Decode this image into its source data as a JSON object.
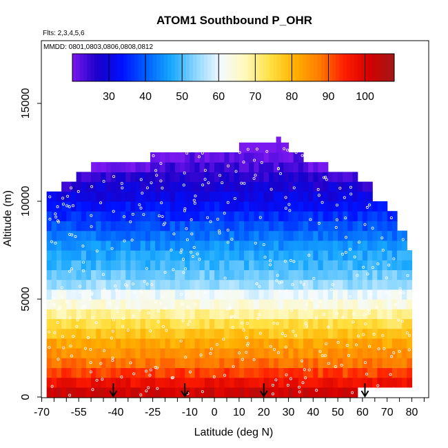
{
  "chart_data": {
    "type": "heatmap",
    "title": "ATOM1 Southbound P_OHR",
    "subtitle_flights": "Flts: 2,3,4,5,6",
    "subtitle_dates": "MMDD: 0801,0803,0806,0808,0812",
    "xlabel": "Latitude (deg N)",
    "ylabel": "Altitude (m)",
    "xlim": [
      -70,
      85
    ],
    "ylim": [
      0,
      17500
    ],
    "x_ticks": [
      -70,
      -55,
      -40,
      -25,
      -10,
      0,
      10,
      20,
      30,
      40,
      50,
      60,
      70,
      80
    ],
    "x_tick_labels": [
      "-70",
      "-55",
      "-40",
      "-25",
      "-10",
      "0",
      "10",
      "20",
      "30",
      "40",
      "50",
      "60",
      "70",
      "80"
    ],
    "y_ticks": [
      0,
      5000,
      10000,
      15000
    ],
    "y_tick_labels": [
      "0",
      "5000",
      "10000",
      "15000"
    ],
    "colorbar": {
      "range": [
        20,
        108
      ],
      "ticks": [
        30,
        40,
        50,
        60,
        70,
        80,
        90,
        100
      ],
      "tick_labels": [
        "30",
        "40",
        "50",
        "60",
        "70",
        "80",
        "90",
        "100"
      ],
      "colors": [
        "#7a18f0",
        "#1a00c8",
        "#0010ff",
        "#0060ff",
        "#18a8ff",
        "#8ed8ff",
        "#f4faff",
        "#fff8b8",
        "#ffe040",
        "#ffb000",
        "#ff7a00",
        "#ff1c00",
        "#d40000",
        "#a01818"
      ]
    },
    "profile": {
      "altitude_m": [
        250,
        750,
        1250,
        1750,
        2250,
        2750,
        3250,
        3750,
        4250,
        4750,
        5250,
        5750,
        6250,
        6750,
        7250,
        7750,
        8250,
        8750,
        9250,
        9750,
        10250,
        10750,
        11250,
        11750,
        12250,
        12750,
        13250
      ],
      "value": [
        102,
        97,
        92,
        88,
        85,
        82,
        78,
        74,
        69,
        64,
        60,
        55,
        52,
        49,
        47,
        45,
        42,
        39,
        36,
        33,
        30,
        28,
        26,
        24,
        22,
        21,
        20
      ]
    },
    "coverage_top_m": [
      {
        "lat_range": [
          -68,
          -62
        ],
        "top_m": 10500
      },
      {
        "lat_range": [
          -62,
          -56
        ],
        "top_m": 10800
      },
      {
        "lat_range": [
          -56,
          -50
        ],
        "top_m": 11300
      },
      {
        "lat_range": [
          -50,
          -26
        ],
        "top_m": 11900
      },
      {
        "lat_range": [
          -26,
          -14
        ],
        "top_m": 12400
      },
      {
        "lat_range": [
          -14,
          2
        ],
        "top_m": 12500
      },
      {
        "lat_range": [
          2,
          10
        ],
        "top_m": 12500
      },
      {
        "lat_range": [
          10,
          20
        ],
        "top_m": 12900
      },
      {
        "lat_range": [
          20,
          26
        ],
        "top_m": 12900
      },
      {
        "lat_range": [
          26,
          30
        ],
        "top_m": 12900
      },
      {
        "lat_range": [
          30,
          36
        ],
        "top_m": 12500
      },
      {
        "lat_range": [
          36,
          46
        ],
        "top_m": 11900
      },
      {
        "lat_range": [
          46,
          58
        ],
        "top_m": 11400
      },
      {
        "lat_range": [
          58,
          64
        ],
        "top_m": 10900
      },
      {
        "lat_range": [
          64,
          70
        ],
        "top_m": 10000
      },
      {
        "lat_range": [
          70,
          74
        ],
        "top_m": 9400
      },
      {
        "lat_range": [
          74,
          77
        ],
        "top_m": 8400
      },
      {
        "lat_range": [
          77,
          79
        ],
        "top_m": 7500
      },
      {
        "lat_range": [
          79,
          80
        ],
        "top_m": 5500
      }
    ],
    "top_spike": {
      "lat_range": [
        25,
        27
      ],
      "top_m": 13300
    },
    "low_gap": {
      "lat_range": [
        57,
        80
      ],
      "top_m": 500
    },
    "arrow_latitudes": [
      -41,
      -12,
      20,
      61
    ]
  }
}
